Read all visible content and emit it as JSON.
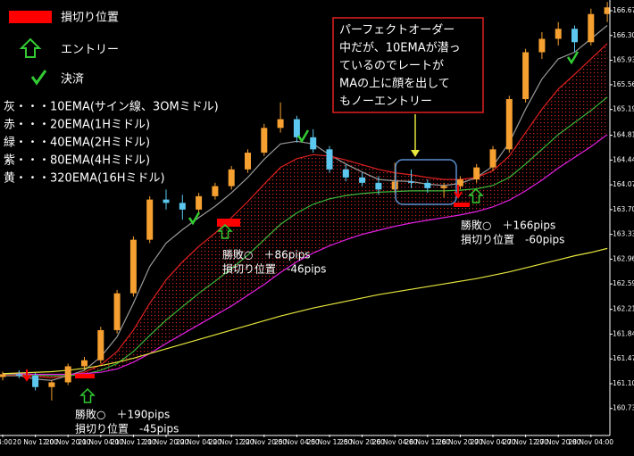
{
  "chart_data": {
    "type": "candlestick",
    "categories": [
      "04:00",
      null,
      "20 Nov 12:00",
      null,
      "20 Nov 20:00",
      null,
      "21 Nov 04:00",
      null,
      "21 Nov 12:00",
      null,
      "21 Nov 20:00",
      null,
      "22 Nov 04:00",
      null,
      "22 Nov 12:00",
      null,
      "22 Nov 20:00",
      null,
      "25 Nov 04:00",
      null,
      "25 Nov 12:00",
      null,
      "25 Nov 20:00",
      null,
      "26 Nov 04:00",
      null,
      "26 Nov 12:00",
      null,
      "26 Nov 20:00",
      null,
      "27 Nov 04:00",
      null,
      "27 Nov 12:00",
      null,
      "27 Nov 20:00",
      null,
      "28 Nov 04:00",
      null
    ],
    "open": [
      161.2,
      161.24,
      161.22,
      161.05,
      161.12,
      161.36,
      161.45,
      161.9,
      162.45,
      163.25,
      163.85,
      163.8,
      163.7,
      163.9,
      164.05,
      164.3,
      164.55,
      164.92,
      165.05,
      164.78,
      164.6,
      164.3,
      164.18,
      164.1,
      164.0,
      164.12,
      164.1,
      164.02,
      164.05,
      164.15,
      164.33,
      164.6,
      165.35,
      166.05,
      166.25,
      166.4,
      166.2,
      166.62
    ],
    "high": [
      161.28,
      161.3,
      161.26,
      161.15,
      161.4,
      161.5,
      161.95,
      162.5,
      163.3,
      163.9,
      164.0,
      163.92,
      163.95,
      164.1,
      164.35,
      164.6,
      164.98,
      165.3,
      165.1,
      164.9,
      164.65,
      164.38,
      164.25,
      164.2,
      164.4,
      164.3,
      164.15,
      164.1,
      164.2,
      164.38,
      164.65,
      165.4,
      166.1,
      166.35,
      166.5,
      166.45,
      166.7,
      166.8
    ],
    "low": [
      161.15,
      161.18,
      161.0,
      160.85,
      161.08,
      161.3,
      161.4,
      161.85,
      162.4,
      163.2,
      163.7,
      163.55,
      163.62,
      163.85,
      164.0,
      164.25,
      164.5,
      164.85,
      164.7,
      164.55,
      164.25,
      164.12,
      164.05,
      163.92,
      163.95,
      164.02,
      163.95,
      163.88,
      164.0,
      164.1,
      164.28,
      164.55,
      165.3,
      165.95,
      166.15,
      166.05,
      166.15,
      166.5
    ],
    "close": [
      161.24,
      161.22,
      161.05,
      161.12,
      161.36,
      161.45,
      161.9,
      162.45,
      163.25,
      163.85,
      163.8,
      163.7,
      163.9,
      164.05,
      164.3,
      164.55,
      164.92,
      165.05,
      164.78,
      164.6,
      164.3,
      164.18,
      164.1,
      164.0,
      164.12,
      164.1,
      164.02,
      164.05,
      164.15,
      164.33,
      164.6,
      165.35,
      166.05,
      166.25,
      166.4,
      166.2,
      166.62,
      166.72
    ],
    "up_color": "#f5a030",
    "down_color": "#5cc8f0",
    "series": [
      {
        "name": "灰・・・10EMA(サイン線、3OMミドル)",
        "color": "#9a9a9a",
        "values": [
          161.22,
          161.22,
          161.17,
          161.15,
          161.22,
          161.3,
          161.5,
          161.8,
          162.3,
          162.85,
          163.2,
          163.4,
          163.58,
          163.75,
          163.95,
          164.18,
          164.45,
          164.68,
          164.72,
          164.68,
          164.52,
          164.38,
          164.26,
          164.15,
          164.13,
          164.12,
          164.08,
          164.06,
          164.09,
          164.18,
          164.35,
          164.7,
          165.2,
          165.65,
          165.95,
          166.05,
          166.25,
          166.45
        ]
      },
      {
        "name": "赤・・・20EMA(1Hミドル)",
        "color": "#e02020",
        "values": [
          161.23,
          161.23,
          161.21,
          161.19,
          161.22,
          161.27,
          161.38,
          161.58,
          161.9,
          162.3,
          162.65,
          162.92,
          163.15,
          163.35,
          163.58,
          163.82,
          164.08,
          164.33,
          164.46,
          164.52,
          164.5,
          164.44,
          164.37,
          164.3,
          164.25,
          164.22,
          164.18,
          164.15,
          164.15,
          164.18,
          164.28,
          164.5,
          164.85,
          165.2,
          165.5,
          165.72,
          165.95,
          166.18
        ]
      },
      {
        "name": "緑・・・40EMA(2Hミドル)",
        "color": "#3cb83c",
        "values": [
          161.24,
          161.24,
          161.23,
          161.22,
          161.22,
          161.24,
          161.3,
          161.4,
          161.58,
          161.82,
          162.05,
          162.25,
          162.45,
          162.63,
          162.82,
          163.02,
          163.25,
          163.48,
          163.65,
          163.78,
          163.86,
          163.91,
          163.94,
          163.96,
          163.97,
          163.98,
          163.98,
          163.98,
          163.99,
          164.01,
          164.06,
          164.18,
          164.38,
          164.6,
          164.82,
          165.0,
          165.18,
          165.38
        ]
      },
      {
        "name": "紫・・・80EMA(4Hミドル)",
        "color": "#e020e0",
        "values": [
          161.25,
          161.25,
          161.24,
          161.24,
          161.24,
          161.25,
          161.27,
          161.32,
          161.42,
          161.55,
          161.7,
          161.84,
          161.98,
          162.12,
          162.26,
          162.42,
          162.58,
          162.76,
          162.92,
          163.05,
          163.16,
          163.25,
          163.33,
          163.39,
          163.45,
          163.5,
          163.54,
          163.58,
          163.62,
          163.67,
          163.74,
          163.84,
          163.98,
          164.14,
          164.32,
          164.48,
          164.64,
          164.82
        ]
      },
      {
        "name": "黄・・・320EMA(16Hミドル)",
        "color": "#e6e63c",
        "values": [
          161.25,
          161.26,
          161.27,
          161.28,
          161.3,
          161.33,
          161.37,
          161.42,
          161.48,
          161.55,
          161.62,
          161.69,
          161.76,
          161.83,
          161.9,
          161.97,
          162.04,
          162.11,
          162.17,
          162.23,
          162.28,
          162.33,
          162.38,
          162.43,
          162.47,
          162.51,
          162.55,
          162.59,
          162.63,
          162.67,
          162.72,
          162.77,
          162.83,
          162.89,
          162.95,
          163.01,
          163.06,
          163.12
        ]
      }
    ],
    "ylim": [
      160.34,
      166.83
    ],
    "yticks": [
      {
        "value": 166.67,
        "label": "166.670"
      },
      {
        "value": 166.3,
        "label": "166.300"
      },
      {
        "value": 165.93,
        "label": "165.930"
      },
      {
        "value": 165.565,
        "label": "165.565"
      },
      {
        "value": 165.195,
        "label": "165.195"
      },
      {
        "value": 164.81,
        "label": "164.810"
      },
      {
        "value": 164.44,
        "label": "164.440"
      },
      {
        "value": 164.07,
        "label": "164.070"
      },
      {
        "value": 163.7,
        "label": "163.700"
      },
      {
        "value": 163.33,
        "label": "163.330"
      },
      {
        "value": 162.96,
        "label": "162.960"
      },
      {
        "value": 162.59,
        "label": "162.590"
      },
      {
        "value": 162.21,
        "label": "162.210"
      },
      {
        "value": 161.84,
        "label": "161.840"
      },
      {
        "value": 161.47,
        "label": "161.470"
      },
      {
        "value": 161.1,
        "label": "161.100"
      },
      {
        "value": 160.73,
        "label": "160.730"
      }
    ],
    "grid": false,
    "marker_legend": [
      "損切り位置",
      "エントリー",
      "決済"
    ],
    "callout": [
      "パーフェクトオーダー",
      "中だが、10EMAが潜っ",
      "ているのでレートが",
      "MAの上に顔を出して",
      "もノーエントリー"
    ],
    "trades": [
      [
        "勝敗○　＋190pips",
        "損切り位置　-45pips"
      ],
      [
        "勝敗○　＋86pips",
        "損切り位置　-46pips"
      ],
      [
        "勝敗○　＋166pips",
        "損切り位置　-60pips"
      ]
    ]
  }
}
